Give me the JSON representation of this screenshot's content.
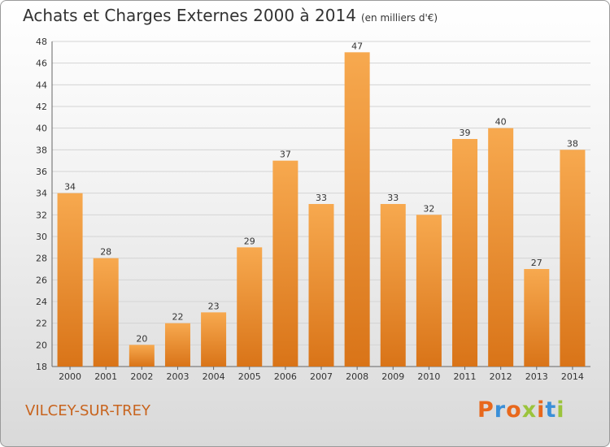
{
  "header": {
    "title": "Achats et Charges Externes 2000 à 2014",
    "subtitle": "(en milliers d'€)"
  },
  "footer": {
    "commune": "VILCEY-SUR-TREY",
    "brand": "Proxiti",
    "brand_colors": [
      "#e8681c",
      "#3a8fd8",
      "#e8681c",
      "#9bc43c",
      "#e8681c",
      "#3a8fd8",
      "#9bc43c"
    ]
  },
  "colors": {
    "bar_light": "#f7a94f",
    "bar_dark": "#d97418",
    "commune": "#c8641e"
  },
  "chart_data": {
    "type": "bar",
    "title": "Achats et Charges Externes 2000 à 2014",
    "subtitle": "(en milliers d'€)",
    "categories": [
      "2000",
      "2001",
      "2002",
      "2003",
      "2004",
      "2005",
      "2006",
      "2007",
      "2008",
      "2009",
      "2010",
      "2011",
      "2012",
      "2013",
      "2014"
    ],
    "values": [
      34,
      28,
      20,
      22,
      23,
      29,
      37,
      33,
      47,
      33,
      32,
      39,
      40,
      27,
      38
    ],
    "ylim": [
      18,
      48
    ],
    "yticks": [
      18,
      20,
      22,
      24,
      26,
      28,
      30,
      32,
      34,
      36,
      38,
      40,
      42,
      44,
      46,
      48
    ],
    "grid": true,
    "xlabel": "",
    "ylabel": ""
  }
}
